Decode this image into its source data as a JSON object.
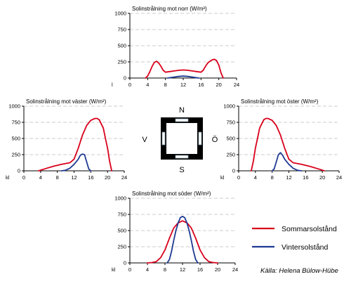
{
  "colors": {
    "summer": "#d9001b",
    "winter": "#1f3a93",
    "grid": "#bdbdbd"
  },
  "compass": {
    "n": "N",
    "s": "S",
    "w": "V",
    "e": "Ö"
  },
  "legend": {
    "summer": "Sommarsolstånd",
    "winter": "Vintersolstånd"
  },
  "source": "Källa: Helena Bülow-Hübe",
  "chart_data": [
    {
      "id": "north",
      "type": "line",
      "title": "Solinstrålning mot norr (W/m²)",
      "xlabel": "l",
      "xlim": [
        0,
        24
      ],
      "xticks": [
        0,
        4,
        8,
        12,
        16,
        20,
        24
      ],
      "ylim": [
        0,
        1000
      ],
      "yticks": [
        0,
        250,
        500,
        750,
        1000
      ],
      "grid": true,
      "series": [
        {
          "name": "Sommarsolstånd",
          "color": "summer",
          "x": [
            3.5,
            4.0,
            4.5,
            5.0,
            5.5,
            6.0,
            6.5,
            7.0,
            7.5,
            8.0,
            9.0,
            10,
            11,
            12,
            13,
            14,
            15,
            16,
            16.5,
            17,
            17.5,
            18,
            18.5,
            19,
            19.5,
            20,
            20.5,
            21
          ],
          "y": [
            0,
            30,
            100,
            180,
            240,
            260,
            230,
            180,
            120,
            90,
            100,
            110,
            120,
            125,
            120,
            110,
            100,
            90,
            120,
            180,
            230,
            260,
            280,
            290,
            270,
            200,
            80,
            0
          ]
        },
        {
          "name": "Vintersolstånd",
          "color": "winter",
          "x": [
            8.5,
            9,
            10,
            11,
            12,
            13,
            14,
            15,
            15.5
          ],
          "y": [
            0,
            5,
            15,
            25,
            30,
            25,
            15,
            5,
            0
          ]
        }
      ]
    },
    {
      "id": "west",
      "type": "line",
      "title": "Solinstrålning mot väster (W/m²)",
      "xlabel": "kl",
      "xlim": [
        0,
        24
      ],
      "xticks": [
        0,
        4,
        8,
        12,
        16,
        20,
        24
      ],
      "ylim": [
        0,
        1000
      ],
      "yticks": [
        0,
        250,
        500,
        750,
        1000
      ],
      "grid": true,
      "series": [
        {
          "name": "Sommarsolstånd",
          "color": "summer",
          "x": [
            3.5,
            5,
            7,
            9,
            11,
            12,
            13,
            14,
            15,
            16,
            17,
            17.5,
            18,
            19,
            19.5,
            20,
            20.5,
            21
          ],
          "y": [
            0,
            30,
            70,
            100,
            125,
            180,
            350,
            550,
            700,
            780,
            810,
            810,
            790,
            660,
            500,
            350,
            150,
            0
          ]
        },
        {
          "name": "Vintersolstånd",
          "color": "winter",
          "x": [
            9,
            10,
            11,
            12,
            13,
            13.5,
            14,
            14.5,
            15,
            15.5,
            16
          ],
          "y": [
            0,
            10,
            40,
            100,
            180,
            240,
            260,
            250,
            140,
            30,
            0
          ]
        }
      ]
    },
    {
      "id": "east",
      "type": "line",
      "title": "Solinstrålning mot öster (W/m²)",
      "xlabel": "kl",
      "xlim": [
        0,
        24
      ],
      "xticks": [
        0,
        4,
        8,
        12,
        16,
        20,
        24
      ],
      "ylim": [
        0,
        1000
      ],
      "yticks": [
        0,
        250,
        500,
        750,
        1000
      ],
      "grid": true,
      "series": [
        {
          "name": "Sommarsolstånd",
          "color": "summer",
          "x": [
            3,
            3.5,
            4,
            4.5,
            5,
            6,
            6.5,
            7,
            8,
            9,
            10,
            11,
            12,
            13,
            15,
            17,
            19,
            20.5
          ],
          "y": [
            0,
            150,
            350,
            500,
            660,
            790,
            810,
            810,
            780,
            700,
            550,
            350,
            180,
            125,
            100,
            70,
            30,
            0
          ]
        },
        {
          "name": "Vintersolstånd",
          "color": "winter",
          "x": [
            8,
            8.5,
            9,
            9.5,
            10,
            10.5,
            11,
            12,
            13,
            14,
            15
          ],
          "y": [
            0,
            30,
            140,
            250,
            280,
            240,
            180,
            100,
            40,
            10,
            0
          ]
        }
      ]
    },
    {
      "id": "south",
      "type": "line",
      "title": "Solinstrålning mot söder (W/m²)",
      "xlabel": "kl",
      "xlim": [
        0,
        24
      ],
      "xticks": [
        0,
        4,
        8,
        12,
        16,
        20,
        24
      ],
      "ylim": [
        0,
        1000
      ],
      "yticks": [
        0,
        250,
        500,
        750,
        1000
      ],
      "grid": true,
      "series": [
        {
          "name": "Sommarsolstånd",
          "color": "summer",
          "x": [
            4,
            5,
            6,
            7,
            8,
            9,
            10,
            11,
            12,
            13,
            14,
            15,
            16,
            17,
            18,
            19,
            20
          ],
          "y": [
            0,
            5,
            20,
            80,
            200,
            380,
            540,
            620,
            650,
            620,
            540,
            380,
            200,
            80,
            20,
            5,
            0
          ]
        },
        {
          "name": "Vintersolstånd",
          "color": "winter",
          "x": [
            8.5,
            9,
            9.5,
            10,
            10.5,
            11,
            11.5,
            12,
            12.5,
            13,
            13.5,
            14,
            14.5,
            15,
            15.5
          ],
          "y": [
            0,
            50,
            180,
            350,
            500,
            620,
            700,
            720,
            700,
            620,
            500,
            350,
            180,
            50,
            0
          ]
        }
      ]
    }
  ]
}
